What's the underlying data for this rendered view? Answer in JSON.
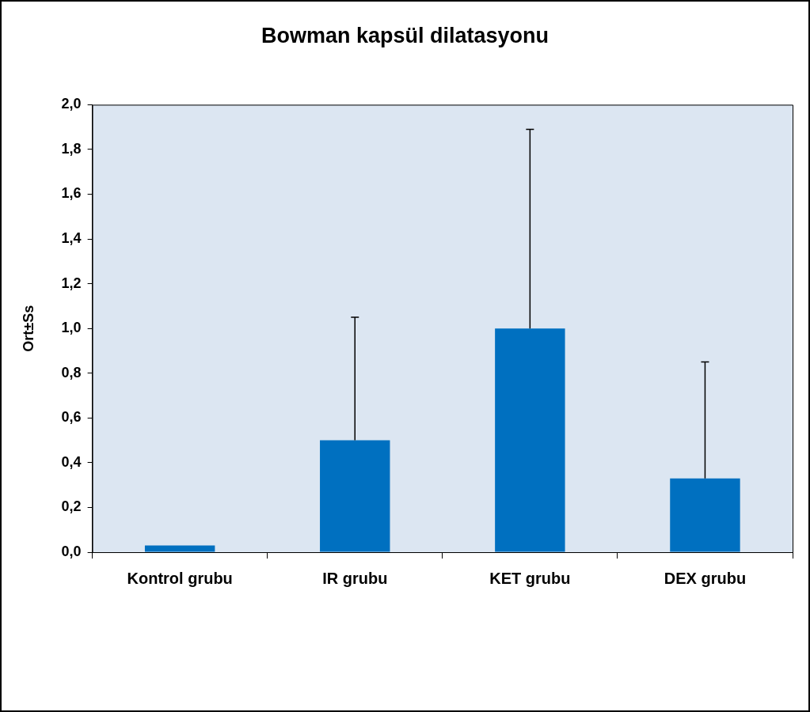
{
  "chart_data": {
    "type": "bar",
    "title": "Bowman kapsül dilatasyonu",
    "ylabel": "Ort±Ss",
    "categories": [
      "Kontrol grubu",
      "IR grubu",
      "KET grubu",
      "DEX grubu"
    ],
    "values": [
      0.03,
      0.5,
      1.0,
      0.33
    ],
    "color": "#0070c0",
    "errors": [
      null,
      [
        0.5,
        1.05
      ],
      [
        1.0,
        1.89
      ],
      [
        0.33,
        0.85
      ]
    ],
    "ylim": [
      0,
      2
    ],
    "yticks": [
      {
        "value": 0,
        "label": "0,0"
      },
      {
        "value": 0.2,
        "label": "0,2"
      },
      {
        "value": 0.4,
        "label": "0,4"
      },
      {
        "value": 0.6,
        "label": "0,6"
      },
      {
        "value": 0.8,
        "label": "0,8"
      },
      {
        "value": 1,
        "label": "1,0"
      },
      {
        "value": 1.2,
        "label": "1,2"
      },
      {
        "value": 1.4,
        "label": "1,4"
      },
      {
        "value": 1.6,
        "label": "1,6"
      },
      {
        "value": 1.8,
        "label": "1,8"
      },
      {
        "value": 2,
        "label": "2,0"
      }
    ],
    "grid": false,
    "legend": false
  }
}
